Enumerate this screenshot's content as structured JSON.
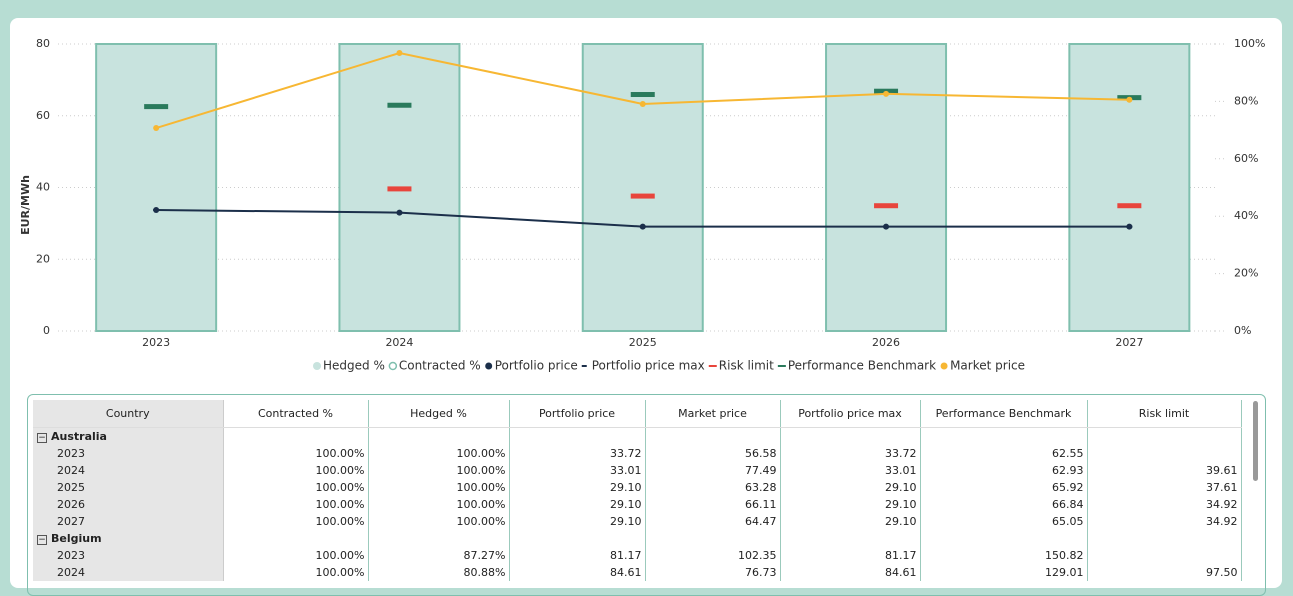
{
  "chart_data": {
    "type": "combo",
    "y_label": "EUR/MWh",
    "categories": [
      "2023",
      "2024",
      "2025",
      "2026",
      "2027"
    ],
    "ylim": [
      0,
      80
    ],
    "yticks": [
      0,
      20,
      40,
      60,
      80
    ],
    "y2lim": [
      0,
      100
    ],
    "y2ticks": [
      {
        "value": 0,
        "label": "0%"
      },
      {
        "value": 20,
        "label": "20%"
      },
      {
        "value": 40,
        "label": "40%"
      },
      {
        "value": 60,
        "label": "60%"
      },
      {
        "value": 80,
        "label": "80%"
      },
      {
        "value": 100,
        "label": "100%"
      }
    ],
    "grid": true,
    "series": [
      {
        "name": "Hedged %",
        "type": "bar",
        "axis": "y2",
        "color": "#c8e3de",
        "values": [
          100,
          100,
          100,
          100,
          100
        ]
      },
      {
        "name": "Contracted %",
        "type": "outline",
        "axis": "y2",
        "color": "#7fbfae",
        "values": [
          100,
          100,
          100,
          100,
          100
        ]
      },
      {
        "name": "Portfolio price",
        "type": "line",
        "color": "#1b2f4a",
        "values": [
          33.72,
          33.01,
          29.1,
          29.1,
          29.1
        ]
      },
      {
        "name": "Portfolio price max",
        "type": "tick",
        "color": "#1b2f4a",
        "values": [
          33.72,
          33.01,
          29.1,
          29.1,
          29.1
        ]
      },
      {
        "name": "Risk limit",
        "type": "dash",
        "color": "#e8453c",
        "values": [
          null,
          39.61,
          37.61,
          34.92,
          34.92
        ]
      },
      {
        "name": "Performance Benchmark",
        "type": "dash",
        "color": "#2a7a5c",
        "values": [
          62.55,
          62.93,
          65.92,
          66.84,
          65.05
        ]
      },
      {
        "name": "Market price",
        "type": "line",
        "color": "#f7b733",
        "values": [
          56.58,
          77.49,
          63.28,
          66.11,
          64.47
        ]
      }
    ]
  },
  "table": {
    "columns": [
      "Country",
      "Contracted %",
      "Hedged %",
      "Portfolio price",
      "Market price",
      "Portfolio price max",
      "Performance Benchmark",
      "Risk limit"
    ],
    "groups": [
      {
        "name": "Australia",
        "rows": [
          [
            "2023",
            "100.00%",
            "100.00%",
            "33.72",
            "56.58",
            "33.72",
            "62.55",
            null
          ],
          [
            "2024",
            "100.00%",
            "100.00%",
            "33.01",
            "77.49",
            "33.01",
            "62.93",
            "39.61"
          ],
          [
            "2025",
            "100.00%",
            "100.00%",
            "29.10",
            "63.28",
            "29.10",
            "65.92",
            "37.61"
          ],
          [
            "2026",
            "100.00%",
            "100.00%",
            "29.10",
            "66.11",
            "29.10",
            "66.84",
            "34.92"
          ],
          [
            "2027",
            "100.00%",
            "100.00%",
            "29.10",
            "64.47",
            "29.10",
            "65.05",
            "34.92"
          ]
        ]
      },
      {
        "name": "Belgium",
        "rows": [
          [
            "2023",
            "100.00%",
            "87.27%",
            "81.17",
            "102.35",
            "81.17",
            "150.82",
            null
          ],
          [
            "2024",
            "100.00%",
            "80.88%",
            "84.61",
            "76.73",
            "84.61",
            "129.01",
            "97.50"
          ]
        ]
      }
    ]
  }
}
